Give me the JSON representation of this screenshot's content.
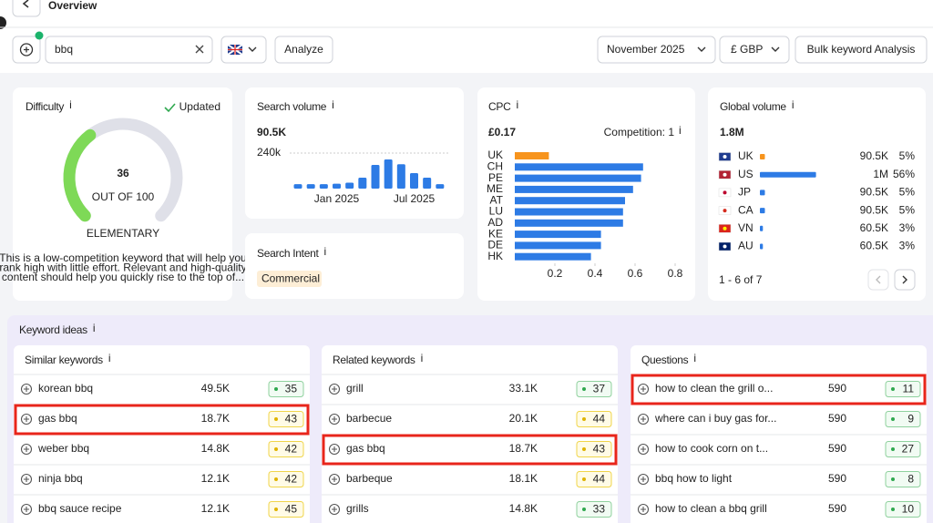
{
  "header": {
    "title": "Overview"
  },
  "toolbar": {
    "search": "bbq",
    "analyze": "Analyze",
    "month": "November 2025",
    "currency": "£ GBP",
    "bulk": "Bulk keyword Analysis"
  },
  "difficulty": {
    "title": "Difficulty",
    "info": "i",
    "status": "Updated",
    "value": 36,
    "max": 100,
    "out_of": "OUT OF 100",
    "level": "ELEMENTARY",
    "description": [
      "This is a low-competition keyword that will help you",
      "rank high with little effort. Relevant and high-quality",
      "content should help you quickly rise to the top of..."
    ]
  },
  "search_volume": {
    "title": "Search volume",
    "info": "i",
    "total": "90.5K",
    "chart": {
      "type": "bar",
      "categories": [
        null,
        null,
        null,
        "Jan 2025",
        null,
        null,
        null,
        null,
        null,
        "Jul 2025",
        null,
        null
      ],
      "values": [
        30000,
        30000,
        30000,
        33000,
        40000,
        74000,
        160000,
        197000,
        165000,
        105000,
        74000,
        30000
      ],
      "color": "#2d7be5",
      "ylim": [
        0,
        240000
      ],
      "yticks": [
        {
          "value": 240000,
          "label": "240k"
        }
      ]
    }
  },
  "search_intent": {
    "title": "Search Intent",
    "info": "i",
    "tag": "Commercial"
  },
  "cpc": {
    "title": "CPC",
    "info": "i",
    "value": "£0.17",
    "competition": "Competition: 1",
    "chart": {
      "type": "hbar",
      "categories": [
        "UK",
        "CH",
        "PE",
        "ME",
        "AT",
        "LU",
        "AD",
        "KE",
        "DE",
        "HK"
      ],
      "values": [
        0.17,
        0.64,
        0.63,
        0.59,
        0.55,
        0.54,
        0.54,
        0.43,
        0.43,
        0.38
      ],
      "colors": [
        "#f7941d",
        "#2d7be5",
        "#2d7be5",
        "#2d7be5",
        "#2d7be5",
        "#2d7be5",
        "#2d7be5",
        "#2d7be5",
        "#2d7be5",
        "#2d7be5"
      ],
      "xlim": [
        0,
        0.85
      ],
      "xticks": [
        0.2,
        0.4,
        0.6,
        0.8
      ]
    }
  },
  "global_volume": {
    "title": "Global volume",
    "info": "i",
    "total": "1.8M",
    "countries": [
      "UK",
      "US",
      "JP",
      "CA",
      "VN",
      "AU"
    ],
    "volumes": [
      "90.5K",
      "1M",
      "90.5K",
      "90.5K",
      "60.5K",
      "60.5K"
    ],
    "shares": [
      5,
      56,
      5,
      5,
      3,
      3
    ],
    "share_labels": [
      "5%",
      "56%",
      "5%",
      "5%",
      "3%",
      "3%"
    ],
    "color": "#2d7be5",
    "highlight_color": "#f7941d",
    "pagination": "1 - 6 of 7"
  },
  "keyword_ideas": {
    "title": "Keyword ideas",
    "info": "i",
    "panels": [
      {
        "title": "Similar keywords",
        "info": "i",
        "highlight": 1,
        "rows": [
          {
            "keyword": "korean bbq",
            "volume": "49.5K",
            "difficulty": 35
          },
          {
            "keyword": "gas bbq",
            "volume": "18.7K",
            "difficulty": 43
          },
          {
            "keyword": "weber bbq",
            "volume": "14.8K",
            "difficulty": 42
          },
          {
            "keyword": "ninja bbq",
            "volume": "12.1K",
            "difficulty": 42
          },
          {
            "keyword": "bbq sauce recipe",
            "volume": "12.1K",
            "difficulty": 45
          }
        ]
      },
      {
        "title": "Related keywords",
        "info": "i",
        "highlight": 2,
        "rows": [
          {
            "keyword": "grill",
            "volume": "33.1K",
            "difficulty": 37
          },
          {
            "keyword": "barbecue",
            "volume": "20.1K",
            "difficulty": 44
          },
          {
            "keyword": "gas bbq",
            "volume": "18.7K",
            "difficulty": 43
          },
          {
            "keyword": "barbeque",
            "volume": "18.1K",
            "difficulty": 44
          },
          {
            "keyword": "grills",
            "volume": "14.8K",
            "difficulty": 33
          }
        ]
      },
      {
        "title": "Questions",
        "info": "i",
        "highlight": 0,
        "rows": [
          {
            "keyword": "how to clean the grill o...",
            "volume": "590",
            "difficulty": 11
          },
          {
            "keyword": "where can i buy gas for...",
            "volume": "590",
            "difficulty": 9
          },
          {
            "keyword": "how to cook corn on t...",
            "volume": "590",
            "difficulty": 27
          },
          {
            "keyword": "bbq how to light",
            "volume": "590",
            "difficulty": 8
          },
          {
            "keyword": "how to clean a bbq grill",
            "volume": "590",
            "difficulty": 10
          }
        ]
      }
    ]
  }
}
